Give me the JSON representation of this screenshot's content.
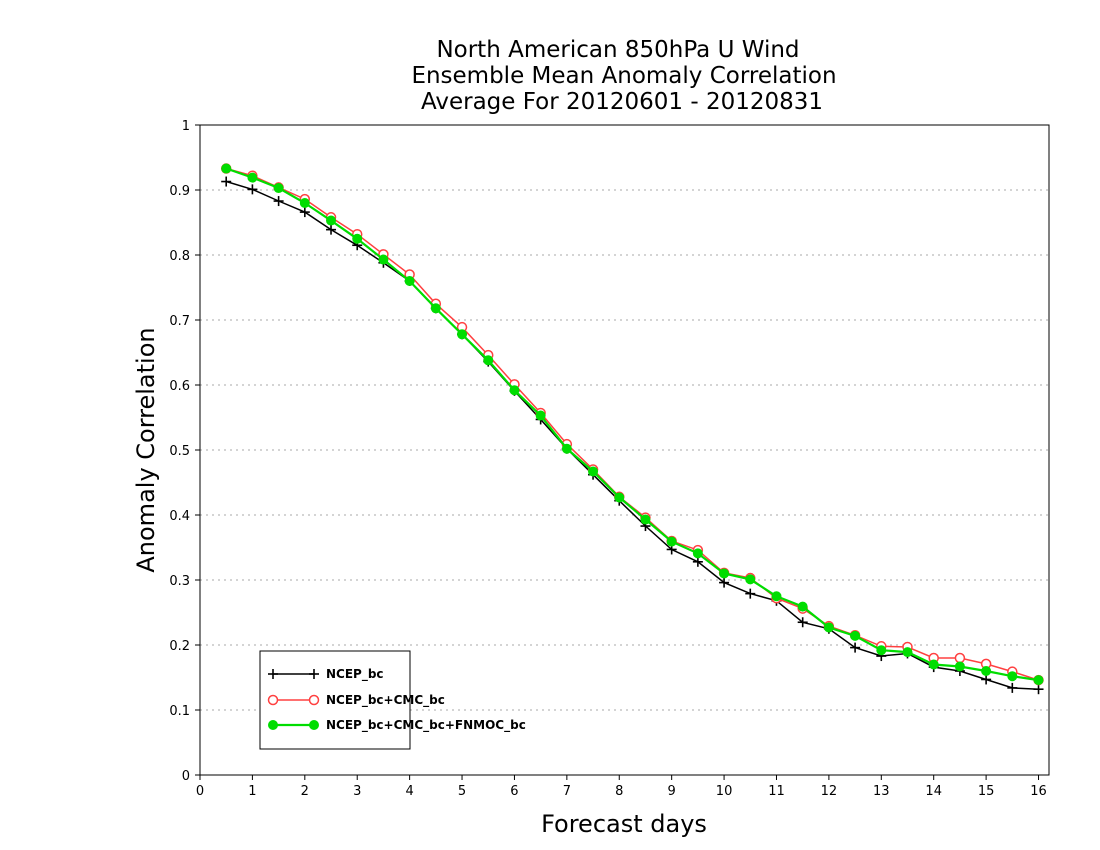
{
  "chart_data": {
    "type": "line",
    "title": [
      "North American 850hPa U Wind",
      "Ensemble Mean Anomaly Correlation",
      "Average For 20120601 - 20120831"
    ],
    "xlabel": "Forecast days",
    "ylabel": "Anomaly Correlation",
    "xlim": [
      0,
      16.2
    ],
    "ylim": [
      0,
      1
    ],
    "xticks": [
      0,
      1,
      2,
      3,
      4,
      5,
      6,
      7,
      8,
      9,
      10,
      11,
      12,
      13,
      14,
      15,
      16
    ],
    "yticks": [
      0,
      0.1,
      0.2,
      0.3,
      0.4,
      0.5,
      0.6,
      0.7,
      0.8,
      0.9,
      1
    ],
    "ytick_labels": [
      "0",
      "0.1",
      "0.2",
      "0.3",
      "0.4",
      "0.5",
      "0.6",
      "0.7",
      "0.8",
      "0.9",
      "1"
    ],
    "grid": "horizontal dotted",
    "legend_position": "bottom-left",
    "x": [
      0.5,
      1,
      1.5,
      2,
      2.5,
      3,
      3.5,
      4,
      4.5,
      5,
      5.5,
      6,
      6.5,
      7,
      7.5,
      8,
      8.5,
      9,
      9.5,
      10,
      10.5,
      11,
      11.5,
      12,
      12.5,
      13,
      13.5,
      14,
      14.5,
      15,
      15.5,
      16
    ],
    "series": [
      {
        "name": "NCEP_bc",
        "color": "#000000",
        "marker": "plus",
        "values": [
          0.913,
          0.901,
          0.883,
          0.866,
          0.839,
          0.815,
          0.788,
          0.76,
          0.718,
          0.678,
          0.636,
          0.591,
          0.547,
          0.502,
          0.462,
          0.422,
          0.383,
          0.347,
          0.328,
          0.296,
          0.279,
          0.268,
          0.235,
          0.225,
          0.196,
          0.183,
          0.187,
          0.166,
          0.16,
          0.147,
          0.134,
          0.132
        ]
      },
      {
        "name": "NCEP_bc+CMC_bc",
        "color": "#ff4040",
        "marker": "open-circle",
        "values": [
          0.933,
          0.922,
          0.904,
          0.886,
          0.858,
          0.832,
          0.801,
          0.77,
          0.725,
          0.689,
          0.646,
          0.601,
          0.557,
          0.509,
          0.47,
          0.428,
          0.396,
          0.36,
          0.346,
          0.311,
          0.303,
          0.272,
          0.256,
          0.229,
          0.215,
          0.198,
          0.197,
          0.18,
          0.18,
          0.171,
          0.159,
          0.146
        ]
      },
      {
        "name": "NCEP_bc+CMC_bc+FNMOC_bc",
        "color": "#00dd00",
        "marker": "filled-circle",
        "values": [
          0.933,
          0.919,
          0.903,
          0.88,
          0.853,
          0.825,
          0.793,
          0.76,
          0.718,
          0.678,
          0.638,
          0.592,
          0.553,
          0.502,
          0.467,
          0.427,
          0.393,
          0.359,
          0.341,
          0.31,
          0.301,
          0.275,
          0.259,
          0.227,
          0.214,
          0.192,
          0.189,
          0.17,
          0.167,
          0.16,
          0.152,
          0.146
        ]
      }
    ]
  }
}
